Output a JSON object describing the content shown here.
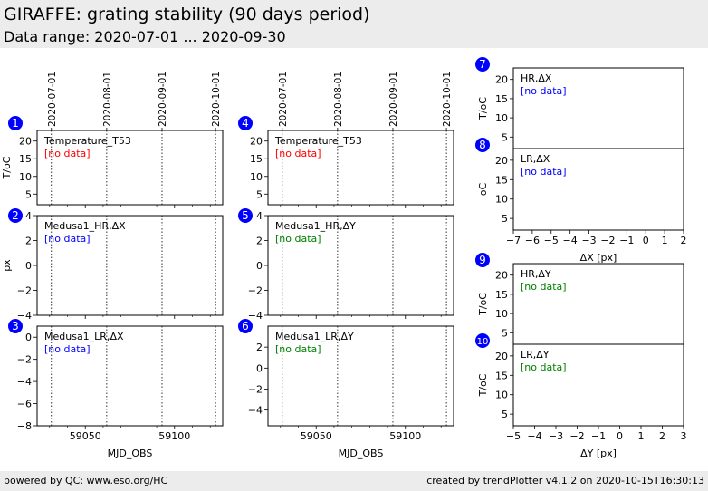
{
  "header": {
    "title": "GIRAFFE: grating stability (90 days period)",
    "subtitle": "Data range: 2020-07-01 ... 2020-09-30"
  },
  "footer": {
    "left": "powered by QC: www.eso.org/HC",
    "right": "created by trendPlotter v4.1.2 on 2020-10-15T16:30:13"
  },
  "colors": {
    "badge": "#0000ff",
    "no_data_red": "#ff0000",
    "no_data_blue": "#0000ff",
    "no_data_green": "#008000",
    "frame": "#000000"
  },
  "chart_data": [
    {
      "id": "1",
      "type": "scatter",
      "label": "Temperature_T53",
      "status": "[no data]",
      "status_color": "red",
      "ylabel": "T/oC",
      "xlim": [
        59023,
        59127
      ],
      "ylim": [
        2,
        23
      ],
      "yticks": [
        5,
        10,
        15,
        20
      ],
      "ytick_labels": [
        "5",
        "10",
        "15",
        "20"
      ],
      "xticks": [
        59050,
        59100
      ],
      "xtick_labels": [],
      "xlabel": "",
      "date_markers": [
        59031,
        59062,
        59093,
        59123
      ],
      "date_labels": [
        "2020-07-01",
        "2020-08-01",
        "2020-09-01",
        "2020-10-01"
      ],
      "series": []
    },
    {
      "id": "2",
      "type": "scatter",
      "label": "Medusa1_HR,ΔX",
      "status": "[no data]",
      "status_color": "blue",
      "ylabel": "px",
      "xlim": [
        59023,
        59127
      ],
      "ylim": [
        -4,
        4
      ],
      "yticks": [
        -4,
        -2,
        0,
        2,
        4
      ],
      "ytick_labels": [
        "−4",
        "−2",
        "0",
        "2",
        "4"
      ],
      "xticks": [
        59050,
        59100
      ],
      "xtick_labels": [],
      "xlabel": "",
      "date_markers": [
        59031,
        59062,
        59093,
        59123
      ],
      "date_labels": [],
      "series": []
    },
    {
      "id": "3",
      "type": "scatter",
      "label": "Medusa1_LR,ΔX",
      "status": "[no data]",
      "status_color": "blue",
      "ylabel": "",
      "xlim": [
        59023,
        59127
      ],
      "ylim": [
        -8,
        1
      ],
      "yticks": [
        -8,
        -6,
        -4,
        -2,
        0
      ],
      "ytick_labels": [
        "−8",
        "−6",
        "−4",
        "−2",
        "0"
      ],
      "xticks": [
        59050,
        59100
      ],
      "xtick_labels": [
        "59050",
        "59100"
      ],
      "xlabel": "MJD_OBS",
      "date_markers": [
        59031,
        59062,
        59093,
        59123
      ],
      "date_labels": [],
      "series": []
    },
    {
      "id": "4",
      "type": "scatter",
      "label": "Temperature_T53",
      "status": "[no data]",
      "status_color": "red",
      "ylabel": "",
      "xlim": [
        59023,
        59127
      ],
      "ylim": [
        2,
        23
      ],
      "yticks": [
        5,
        10,
        15,
        20
      ],
      "ytick_labels": [
        "5",
        "10",
        "15",
        "20"
      ],
      "xticks": [
        59050,
        59100
      ],
      "xtick_labels": [],
      "xlabel": "",
      "date_markers": [
        59031,
        59062,
        59093,
        59123
      ],
      "date_labels": [
        "2020-07-01",
        "2020-08-01",
        "2020-09-01",
        "2020-10-01"
      ],
      "series": []
    },
    {
      "id": "5",
      "type": "scatter",
      "label": "Medusa1_HR,ΔY",
      "status": "[no data]",
      "status_color": "green",
      "ylabel": "",
      "xlim": [
        59023,
        59127
      ],
      "ylim": [
        -4,
        4
      ],
      "yticks": [
        -4,
        -2,
        0,
        2,
        4
      ],
      "ytick_labels": [
        "−4",
        "−2",
        "0",
        "2",
        "4"
      ],
      "xticks": [
        59050,
        59100
      ],
      "xtick_labels": [],
      "xlabel": "",
      "date_markers": [
        59031,
        59062,
        59093,
        59123
      ],
      "date_labels": [],
      "series": []
    },
    {
      "id": "6",
      "type": "scatter",
      "label": "Medusa1_LR,ΔY",
      "status": "[no data]",
      "status_color": "green",
      "ylabel": "",
      "xlim": [
        59023,
        59127
      ],
      "ylim": [
        -5.5,
        4
      ],
      "yticks": [
        -4,
        -2,
        0,
        2
      ],
      "ytick_labels": [
        "−4",
        "−2",
        "0",
        "2"
      ],
      "xticks": [
        59050,
        59100
      ],
      "xtick_labels": [
        "59050",
        "59100"
      ],
      "xlabel": "MJD_OBS",
      "date_markers": [
        59031,
        59062,
        59093,
        59123
      ],
      "date_labels": [],
      "series": []
    },
    {
      "id": "7",
      "type": "scatter",
      "label": "HR,ΔX",
      "status": "[no data]",
      "status_color": "blue",
      "ylabel": "T/oC",
      "xlim": [
        -7,
        2
      ],
      "ylim": [
        2,
        23
      ],
      "yticks": [
        5,
        10,
        15,
        20
      ],
      "ytick_labels": [
        "5",
        "10",
        "15",
        "20"
      ],
      "xticks": [],
      "xtick_labels": [],
      "xlabel": "",
      "date_markers": [],
      "date_labels": [],
      "series": []
    },
    {
      "id": "8",
      "type": "scatter",
      "label": "LR,ΔX",
      "status": "[no data]",
      "status_color": "blue",
      "ylabel": "oC",
      "xlim": [
        -7,
        2
      ],
      "ylim": [
        2,
        23
      ],
      "yticks": [
        5,
        10,
        15,
        20
      ],
      "ytick_labels": [
        "5",
        "10",
        "15",
        "20"
      ],
      "xticks": [
        -7,
        -6,
        -5,
        -4,
        -3,
        -2,
        -1,
        0,
        1,
        2
      ],
      "xtick_labels": [
        "−7",
        "−6",
        "−5",
        "−4",
        "−3",
        "−2",
        "−1",
        "0",
        "1",
        "2"
      ],
      "xlabel": "ΔX [px]",
      "date_markers": [],
      "date_labels": [],
      "series": []
    },
    {
      "id": "9",
      "type": "scatter",
      "label": "HR,ΔY",
      "status": "[no data]",
      "status_color": "green",
      "ylabel": "T/oC",
      "xlim": [
        -5,
        3
      ],
      "ylim": [
        2,
        23
      ],
      "yticks": [
        5,
        10,
        15,
        20
      ],
      "ytick_labels": [
        "5",
        "10",
        "15",
        "20"
      ],
      "xticks": [],
      "xtick_labels": [],
      "xlabel": "",
      "date_markers": [],
      "date_labels": [],
      "series": []
    },
    {
      "id": "10",
      "type": "scatter",
      "label": "LR,ΔY",
      "status": "[no data]",
      "status_color": "green",
      "ylabel": "T/oC",
      "xlim": [
        -5,
        3
      ],
      "ylim": [
        2,
        23
      ],
      "yticks": [
        5,
        10,
        15,
        20
      ],
      "ytick_labels": [
        "5",
        "10",
        "15",
        "20"
      ],
      "xticks": [
        -5,
        -4,
        -3,
        -2,
        -1,
        0,
        1,
        2,
        3
      ],
      "xtick_labels": [
        "−5",
        "−4",
        "−3",
        "−2",
        "−1",
        "0",
        "1",
        "2",
        "3"
      ],
      "xlabel": "ΔY [px]",
      "date_markers": [],
      "date_labels": [],
      "series": []
    }
  ]
}
